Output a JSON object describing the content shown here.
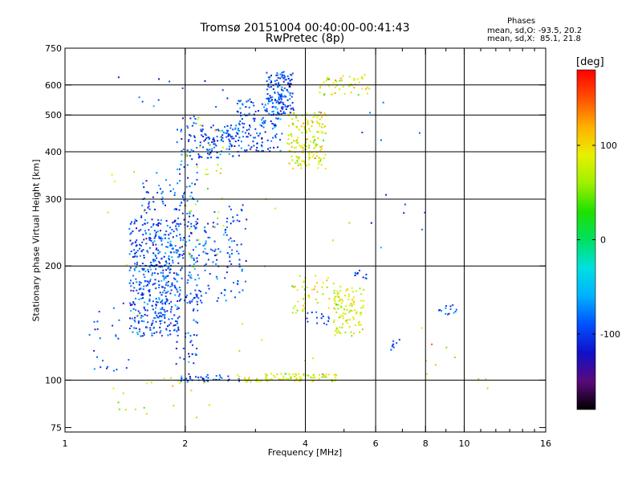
{
  "header": {
    "title": "Tromsø 20151004 00:40:00-00:41:43",
    "subtitle": "RwPretec (8p)",
    "phases_title": "Phases",
    "phases_o": "mean, sd,O: -93.5, 20.2",
    "phases_x": "mean, sd,X:  85.1, 21.8"
  },
  "chart_data": {
    "type": "scatter",
    "xlabel": "Frequency [MHz]",
    "ylabel": "Stationary phase Virtual Height [km]",
    "x_scale": "log",
    "y_scale": "log",
    "xlim": [
      1,
      16
    ],
    "ylim": [
      73,
      750
    ],
    "x_ticks": [
      1,
      2,
      4,
      6,
      8,
      10,
      16
    ],
    "x_tick_labels": [
      "1",
      "2",
      "4",
      "6",
      "8",
      "10",
      "16"
    ],
    "x_minor_ticks": [
      3,
      5,
      7,
      9,
      11,
      12,
      13,
      14,
      15
    ],
    "x_gridlines": [
      2,
      4,
      6,
      8,
      10
    ],
    "y_ticks": [
      75,
      100,
      200,
      300,
      400,
      500,
      600,
      750
    ],
    "y_tick_labels": [
      "75",
      "100",
      "200",
      "300",
      "400",
      "500",
      "600",
      "750"
    ],
    "y_gridlines": [
      100,
      200,
      300,
      400,
      500,
      600
    ],
    "grid": true,
    "colorbar": {
      "label": "[deg]",
      "range": [
        -180,
        180
      ],
      "tick_values": [
        100,
        0,
        -100
      ],
      "tick_labels": [
        "100",
        "0",
        "-100"
      ],
      "stops": [
        "#000000",
        "#5a0a7a",
        "#1010c8",
        "#0050ff",
        "#00b0ff",
        "#00e0e0",
        "#00e060",
        "#20e000",
        "#a0f000",
        "#e8f000",
        "#ffb000",
        "#ff5000",
        "#ff0000"
      ]
    },
    "series": [
      {
        "name": "O",
        "phase_mean": -93.5,
        "phase_sd": 20.2,
        "clusters": [
          {
            "f": [
              1.45,
              1.95
            ],
            "h": [
              130,
              265
            ],
            "n": 430
          },
          {
            "f": [
              1.55,
              1.95
            ],
            "h": [
              170,
              360
            ],
            "n": 90
          },
          {
            "f": [
              1.9,
              2.15
            ],
            "h": [
              110,
              500
            ],
            "n": 170
          },
          {
            "f": [
              2.05,
              2.85
            ],
            "h": [
              160,
              290
            ],
            "n": 140
          },
          {
            "f": [
              2.15,
              2.75
            ],
            "h": [
              385,
              470
            ],
            "n": 110
          },
          {
            "f": [
              2.7,
              3.5
            ],
            "h": [
              400,
              550
            ],
            "n": 150
          },
          {
            "f": [
              3.2,
              3.75
            ],
            "h": [
              500,
              650
            ],
            "n": 140
          },
          {
            "f": [
              1.15,
              1.45
            ],
            "h": [
              105,
              160
            ],
            "n": 25
          },
          {
            "f": [
              1.95,
              2.8
            ],
            "h": [
              99,
              104
            ],
            "n": 40
          },
          {
            "f": [
              4.0,
              4.6
            ],
            "h": [
              140,
              155
            ],
            "n": 15
          },
          {
            "f": [
              8.4,
              9.6
            ],
            "h": [
              148,
              160
            ],
            "n": 15
          },
          {
            "f": [
              6.5,
              6.9
            ],
            "h": [
              120,
              128
            ],
            "n": 8
          },
          {
            "f": [
              5.3,
              5.7
            ],
            "h": [
              185,
              195
            ],
            "n": 10
          },
          {
            "f": [
              1.3,
              2.6
            ],
            "h": [
              520,
              640
            ],
            "n": 12
          },
          {
            "f": [
              5.2,
              8.0
            ],
            "h": [
              220,
              610
            ],
            "n": 12
          }
        ]
      },
      {
        "name": "X",
        "phase_mean": 85.1,
        "phase_sd": 21.8,
        "clusters": [
          {
            "f": [
              3.6,
              4.5
            ],
            "h": [
              360,
              510
            ],
            "n": 160
          },
          {
            "f": [
              4.3,
              5.8
            ],
            "h": [
              560,
              640
            ],
            "n": 50
          },
          {
            "f": [
              4.7,
              5.6
            ],
            "h": [
              130,
              175
            ],
            "n": 110
          },
          {
            "f": [
              3.7,
              4.6
            ],
            "h": [
              150,
              190
            ],
            "n": 45
          },
          {
            "f": [
              2.7,
              4.8
            ],
            "h": [
              99,
              104
            ],
            "n": 90
          },
          {
            "f": [
              2.0,
              2.5
            ],
            "h": [
              190,
              500
            ],
            "n": 35
          },
          {
            "f": [
              1.3,
              2.3
            ],
            "h": [
              78,
              102
            ],
            "n": 20
          },
          {
            "f": [
              1.2,
              6.5
            ],
            "h": [
              110,
              400
            ],
            "n": 20
          },
          {
            "f": [
              7.8,
              11.5
            ],
            "h": [
              95,
              165
            ],
            "n": 10
          }
        ]
      }
    ]
  }
}
